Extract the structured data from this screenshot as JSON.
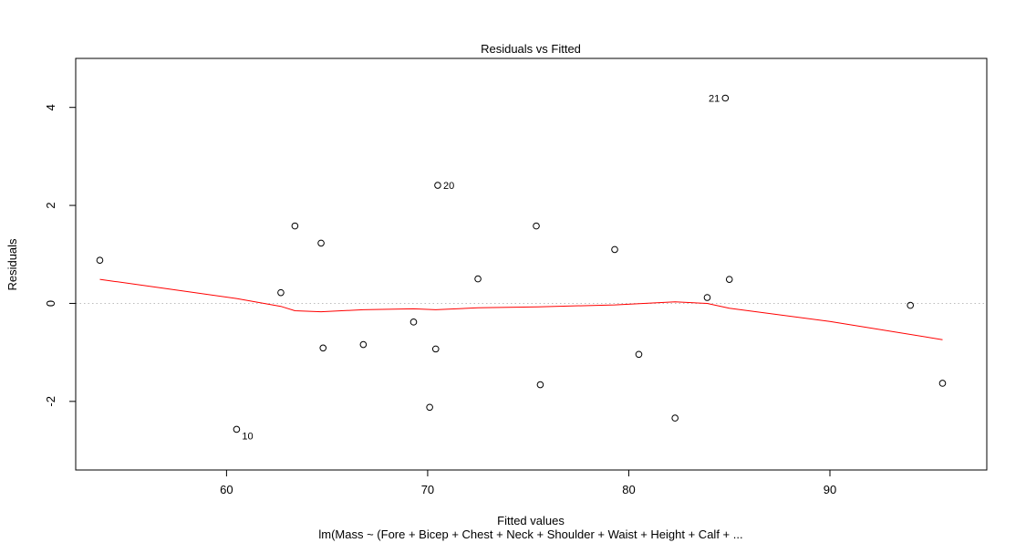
{
  "chart_data": {
    "type": "scatter",
    "title": "Residuals vs Fitted",
    "xlabel": "Fitted values",
    "ylabel": "Residuals",
    "subtitle": "lm(Mass ~ (Fore + Bicep + Chest + Neck + Shoulder + Waist + Height + Calf + ...",
    "xlim": [
      52.5,
      97.8
    ],
    "ylim": [
      -3.4,
      5.0
    ],
    "x_ticks": [
      60,
      70,
      80,
      90
    ],
    "x_tick_labels": [
      "60",
      "70",
      "80",
      "90"
    ],
    "y_ticks": [
      -2,
      0,
      2,
      4
    ],
    "y_tick_labels": [
      "-2",
      "0",
      "2",
      "4"
    ],
    "reference_line": {
      "y": 0,
      "style": "dotted",
      "color": "#bdbdbd"
    },
    "points": [
      {
        "x": 53.7,
        "y": 0.88
      },
      {
        "x": 60.5,
        "y": -2.57,
        "label": "10"
      },
      {
        "x": 62.7,
        "y": 0.22
      },
      {
        "x": 63.4,
        "y": 1.58
      },
      {
        "x": 64.7,
        "y": 1.23
      },
      {
        "x": 64.8,
        "y": -0.91
      },
      {
        "x": 66.8,
        "y": -0.84
      },
      {
        "x": 69.3,
        "y": -0.38
      },
      {
        "x": 70.1,
        "y": -2.12
      },
      {
        "x": 70.4,
        "y": -0.93
      },
      {
        "x": 70.5,
        "y": 2.41,
        "label": "20"
      },
      {
        "x": 72.5,
        "y": 0.5
      },
      {
        "x": 75.4,
        "y": 1.58
      },
      {
        "x": 75.6,
        "y": -1.66
      },
      {
        "x": 79.3,
        "y": 1.1
      },
      {
        "x": 80.5,
        "y": -1.04
      },
      {
        "x": 82.3,
        "y": -2.34
      },
      {
        "x": 83.9,
        "y": 0.12
      },
      {
        "x": 84.8,
        "y": 4.19,
        "label": "21"
      },
      {
        "x": 85.0,
        "y": 0.49
      },
      {
        "x": 94.0,
        "y": -0.04
      },
      {
        "x": 95.6,
        "y": -1.63
      }
    ],
    "smoother": {
      "color": "#ff0000",
      "points": [
        {
          "x": 53.7,
          "y": 0.49
        },
        {
          "x": 57.0,
          "y": 0.3
        },
        {
          "x": 60.5,
          "y": 0.1
        },
        {
          "x": 62.7,
          "y": -0.06
        },
        {
          "x": 63.4,
          "y": -0.15
        },
        {
          "x": 64.7,
          "y": -0.17
        },
        {
          "x": 66.8,
          "y": -0.13
        },
        {
          "x": 69.3,
          "y": -0.11
        },
        {
          "x": 70.4,
          "y": -0.13
        },
        {
          "x": 72.5,
          "y": -0.09
        },
        {
          "x": 75.5,
          "y": -0.07
        },
        {
          "x": 79.3,
          "y": -0.03
        },
        {
          "x": 82.3,
          "y": 0.03
        },
        {
          "x": 83.9,
          "y": 0.0
        },
        {
          "x": 85.0,
          "y": -0.1
        },
        {
          "x": 90.0,
          "y": -0.37
        },
        {
          "x": 95.6,
          "y": -0.74
        }
      ]
    }
  }
}
